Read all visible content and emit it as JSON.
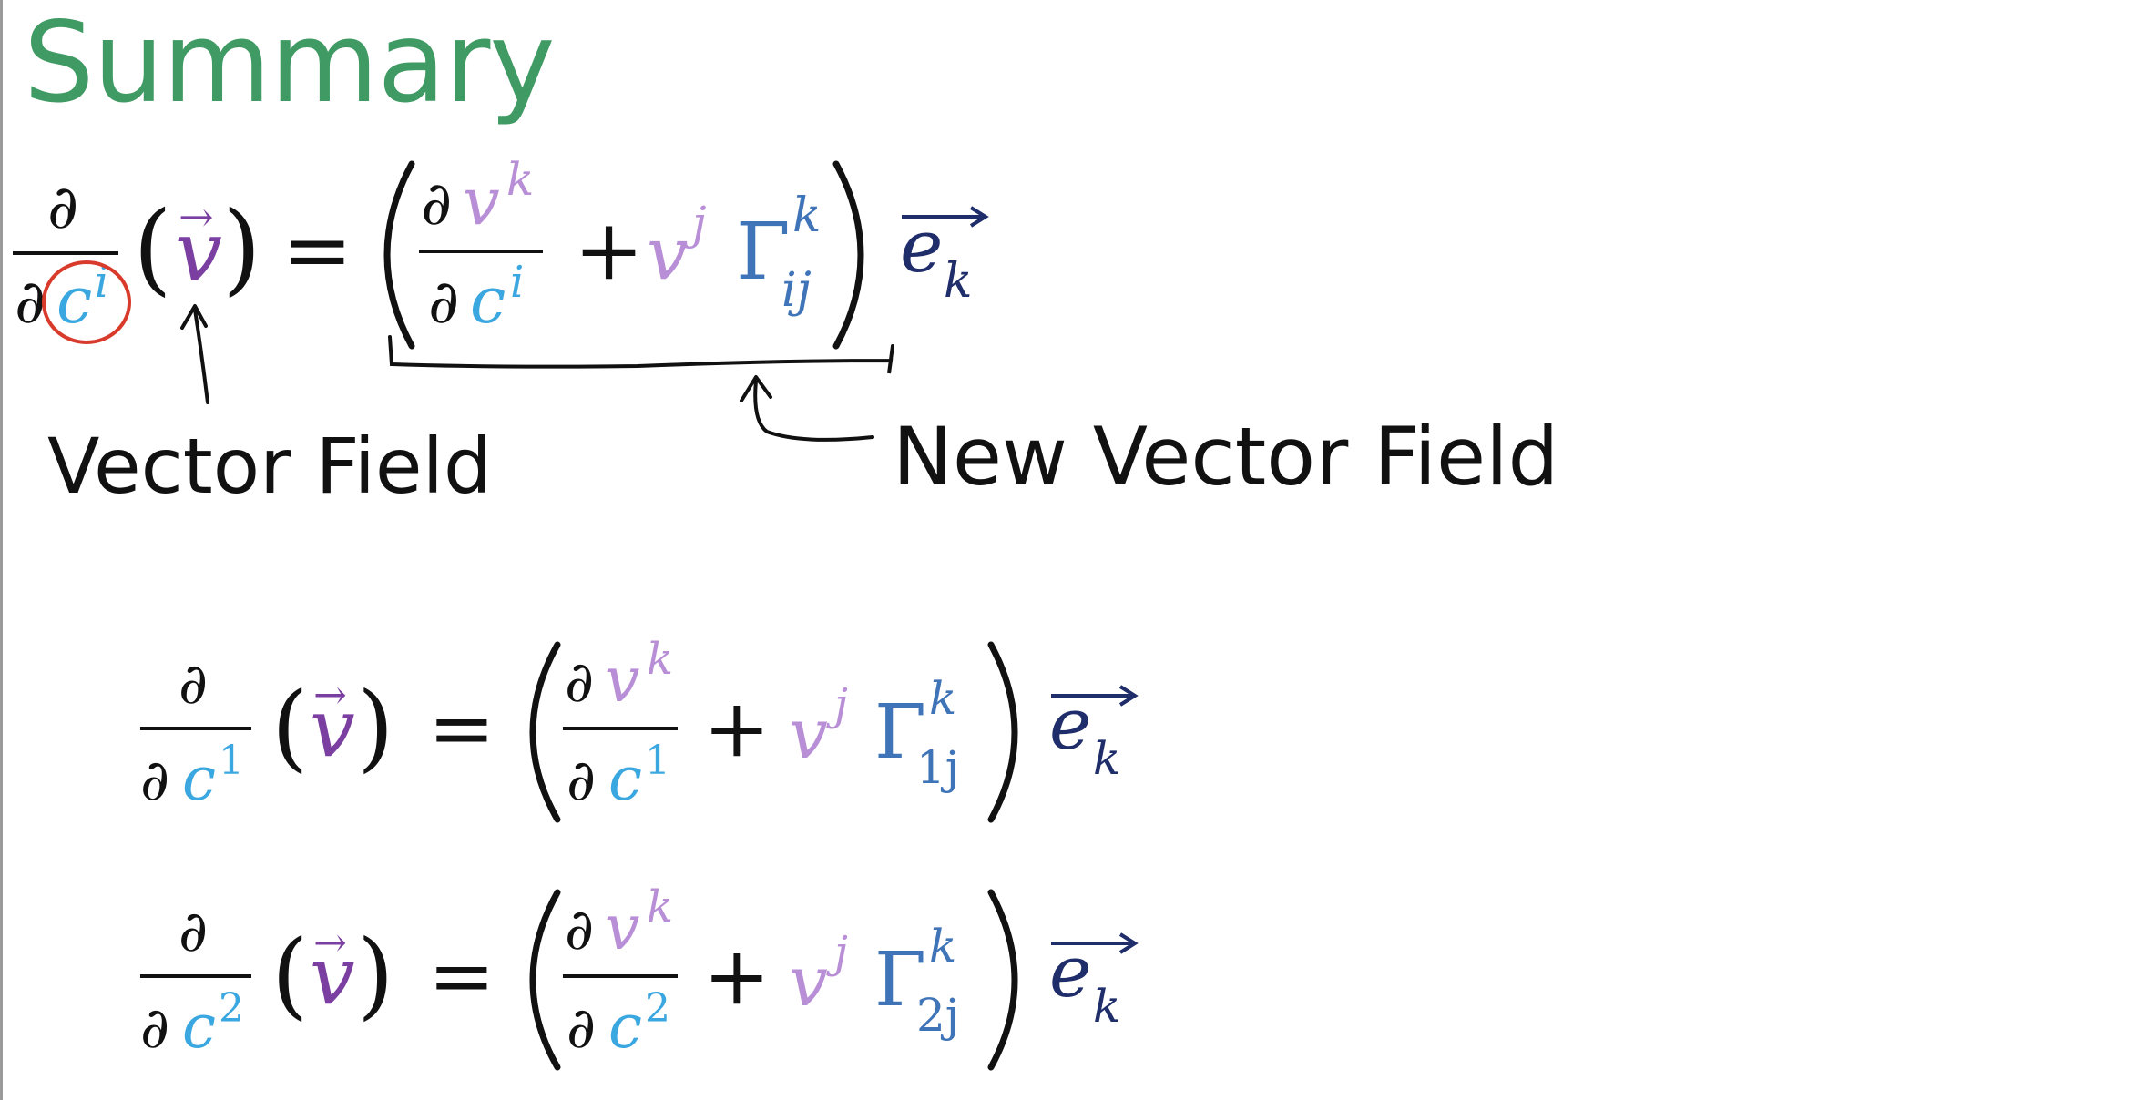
{
  "title": "Summary",
  "labels": {
    "vector_field": "Vector Field",
    "new_vector_field": "New Vector Field"
  },
  "equations": [
    {
      "index": "i",
      "gamma_lower": "ij"
    },
    {
      "index": "1",
      "gamma_lower": "1j"
    },
    {
      "index": "2",
      "gamma_lower": "2j"
    }
  ],
  "symbols": {
    "partial": "∂",
    "c": "c",
    "v": "v",
    "v_upper_k": "k",
    "v_upper_j": "j",
    "gamma": "Γ",
    "gamma_upper": "k",
    "e": "e",
    "e_lower": "k",
    "equals": "=",
    "plus": "+",
    "arrow_vec": "→"
  },
  "colors": {
    "title": "#3f9a63",
    "c_blue": "#3aa7e0",
    "v_purple": "#7a3fa0",
    "v_light": "#b88fd6",
    "gamma_blue": "#3f74b8",
    "e_navy": "#1f2d6b",
    "annotation_red": "#d83b2b",
    "ink": "#111111"
  }
}
